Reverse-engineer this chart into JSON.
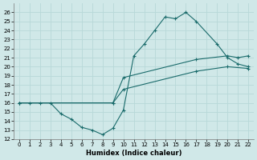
{
  "bg_color": "#d0e8e8",
  "grid_color": "#b8d8d8",
  "line_color": "#1a6b6b",
  "xlabel": "Humidex (Indice chaleur)",
  "xlim": [
    -0.5,
    22.5
  ],
  "ylim": [
    12,
    27
  ],
  "xticks": [
    0,
    1,
    2,
    3,
    4,
    5,
    6,
    7,
    8,
    9,
    10,
    11,
    12,
    13,
    14,
    15,
    16,
    17,
    18,
    19,
    20,
    21,
    22
  ],
  "yticks": [
    12,
    13,
    14,
    15,
    16,
    17,
    18,
    19,
    20,
    21,
    22,
    23,
    24,
    25,
    26
  ],
  "line1_x": [
    0,
    1,
    2,
    3,
    4,
    5,
    6,
    7,
    8,
    9,
    10,
    11,
    12,
    13,
    14,
    15,
    16,
    17,
    19,
    20,
    21,
    22
  ],
  "line1_y": [
    16,
    16,
    16,
    16,
    14.8,
    14.2,
    13.3,
    13.0,
    12.5,
    13.2,
    15.2,
    21.2,
    22.5,
    24.0,
    25.5,
    25.3,
    26.0,
    25.0,
    22.5,
    21.0,
    20.3,
    20.0
  ],
  "line2_x": [
    0,
    9,
    10,
    17,
    20,
    21,
    22
  ],
  "line2_y": [
    16,
    16,
    18.8,
    20.8,
    21.2,
    21.0,
    21.2
  ],
  "line3_x": [
    0,
    9,
    10,
    17,
    20,
    22
  ],
  "line3_y": [
    16,
    16,
    17.5,
    19.5,
    20.0,
    19.8
  ]
}
